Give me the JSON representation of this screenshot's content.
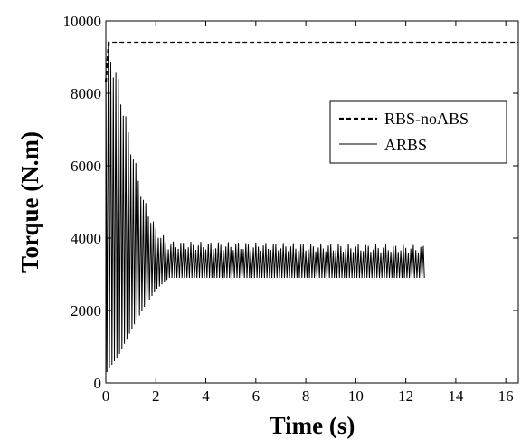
{
  "chart_data": {
    "type": "line",
    "title": "",
    "xlabel": "Time (s)",
    "ylabel": "Torque (N.m)",
    "xlim": [
      0,
      16.5
    ],
    "ylim": [
      0,
      10000
    ],
    "x_ticks": [
      0,
      2,
      4,
      6,
      8,
      10,
      12,
      14,
      16
    ],
    "y_ticks": [
      0,
      2000,
      4000,
      6000,
      8000,
      10000
    ],
    "grid": false,
    "legend_position": "top-right",
    "series": [
      {
        "name": "RBS-noABS",
        "style": "dashed",
        "color": "#000000",
        "x": [
          0,
          0.12,
          16.5
        ],
        "y": [
          8300,
          9400,
          9400
        ]
      },
      {
        "name": "ARBS",
        "style": "solid",
        "color": "#000000",
        "oscillation": {
          "x_start": 0,
          "x_end": 12.7,
          "period_s": 0.1,
          "upper_envelope": [
            [
              0,
              9400
            ],
            [
              0.5,
              8200
            ],
            [
              1.0,
              6500
            ],
            [
              1.5,
              5000
            ],
            [
              2.0,
              4200
            ],
            [
              2.5,
              3800
            ],
            [
              12.7,
              3700
            ]
          ],
          "lower_envelope": [
            [
              0,
              300
            ],
            [
              0.5,
              800
            ],
            [
              1.0,
              1500
            ],
            [
              1.5,
              2100
            ],
            [
              2.0,
              2600
            ],
            [
              2.5,
              2900
            ],
            [
              12.7,
              2900
            ]
          ]
        }
      }
    ]
  }
}
